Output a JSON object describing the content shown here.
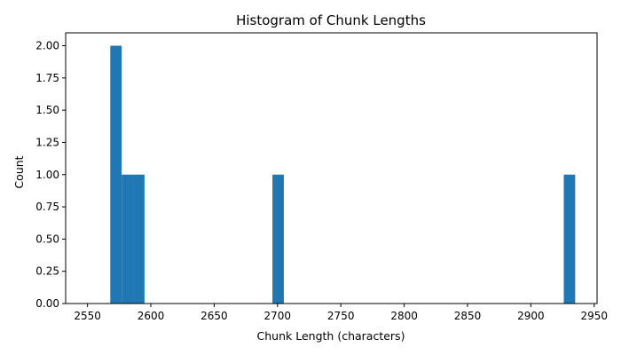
{
  "chart_data": {
    "type": "bar",
    "title": "Histogram of Chunk Lengths",
    "xlabel": "Chunk Length (characters)",
    "ylabel": "Count",
    "xlim": [
      2550,
      2950
    ],
    "ylim": [
      0,
      2.0
    ],
    "xticks": [
      "2550",
      "2600",
      "2650",
      "2700",
      "2750",
      "2800",
      "2850",
      "2900",
      "2950"
    ],
    "yticks": [
      "0.00",
      "0.25",
      "0.50",
      "0.75",
      "1.00",
      "1.25",
      "1.50",
      "1.75",
      "2.00"
    ],
    "bins": [
      {
        "x0": 2568,
        "x1": 2577,
        "count": 2
      },
      {
        "x0": 2577,
        "x1": 2586,
        "count": 1
      },
      {
        "x0": 2586,
        "x1": 2595,
        "count": 1
      },
      {
        "x0": 2696,
        "x1": 2705,
        "count": 1
      },
      {
        "x0": 2926,
        "x1": 2935,
        "count": 1
      }
    ],
    "bar_color": "#1f77b4",
    "grid": false,
    "legend": "none"
  }
}
